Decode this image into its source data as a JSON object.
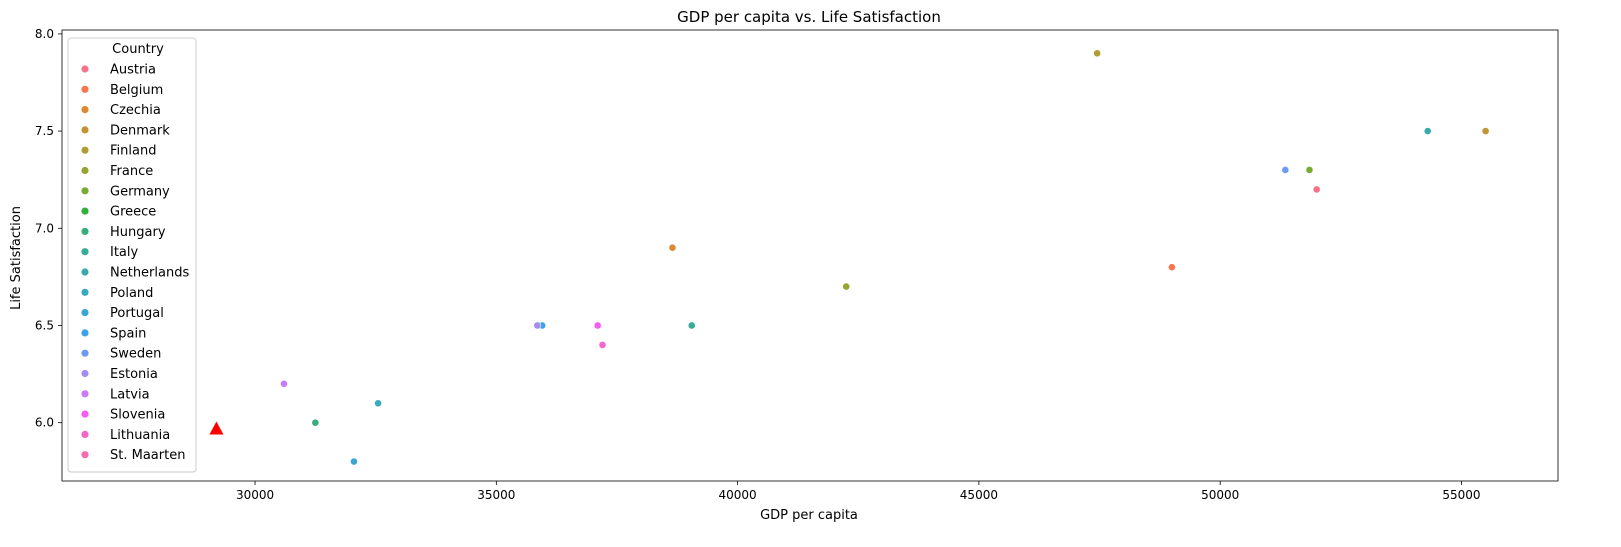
{
  "chart_data": {
    "type": "scatter",
    "title": "GDP per capita vs. Life Satisfaction",
    "xlabel": "GDP per capita",
    "ylabel": "Life Satisfaction",
    "xlim": [
      26000,
      57000
    ],
    "ylim": [
      5.7,
      8.02
    ],
    "xticks": [
      30000,
      35000,
      40000,
      45000,
      50000,
      55000
    ],
    "yticks": [
      6.0,
      6.5,
      7.0,
      7.5,
      8.0
    ],
    "xtick_labels": [
      "30000",
      "35000",
      "40000",
      "45000",
      "50000",
      "55000"
    ],
    "ytick_labels": [
      "6.0",
      "6.5",
      "7.0",
      "7.5",
      "8.0"
    ],
    "grid": false,
    "legend": {
      "title": "Country",
      "placement": "upper-left"
    },
    "series": [
      {
        "name": "Austria",
        "color": "#f77189",
        "x": [
          52000
        ],
        "y": [
          7.2
        ]
      },
      {
        "name": "Belgium",
        "color": "#f7754f",
        "x": [
          49000
        ],
        "y": [
          6.8
        ]
      },
      {
        "name": "Czechia",
        "color": "#dc8932",
        "x": [
          38650
        ],
        "y": [
          6.9
        ]
      },
      {
        "name": "Denmark",
        "color": "#c39532",
        "x": [
          55500
        ],
        "y": [
          7.5
        ]
      },
      {
        "name": "Finland",
        "color": "#ae9d31",
        "x": [
          47450
        ],
        "y": [
          7.9
        ]
      },
      {
        "name": "France",
        "color": "#97a431",
        "x": [
          42250
        ],
        "y": [
          6.7
        ]
      },
      {
        "name": "Germany",
        "color": "#77ab31",
        "x": [
          51850
        ],
        "y": [
          7.3
        ]
      },
      {
        "name": "Greece",
        "color": "#33b039",
        "x": [],
        "y": []
      },
      {
        "name": "Hungary",
        "color": "#35ae7c",
        "x": [
          31250
        ],
        "y": [
          6.0
        ]
      },
      {
        "name": "Italy",
        "color": "#36ad94",
        "x": [
          39050
        ],
        "y": [
          6.5
        ]
      },
      {
        "name": "Netherlands",
        "color": "#37abaa",
        "x": [
          54300
        ],
        "y": [
          7.5
        ]
      },
      {
        "name": "Poland",
        "color": "#38a9bf",
        "x": [
          32550
        ],
        "y": [
          6.1
        ]
      },
      {
        "name": "Portugal",
        "color": "#3aa6d4",
        "x": [
          32050
        ],
        "y": [
          5.8
        ]
      },
      {
        "name": "Spain",
        "color": "#3ba3ec",
        "x": [
          35950
        ],
        "y": [
          6.5
        ]
      },
      {
        "name": "Sweden",
        "color": "#6e9af4",
        "x": [
          51350
        ],
        "y": [
          7.3
        ]
      },
      {
        "name": "Estonia",
        "color": "#a48cf4",
        "x": [
          35850
        ],
        "y": [
          6.5
        ]
      },
      {
        "name": "Latvia",
        "color": "#cc7af4",
        "x": [
          30600
        ],
        "y": [
          6.2
        ]
      },
      {
        "name": "Slovenia",
        "color": "#f45cf2",
        "x": [
          37100
        ],
        "y": [
          6.5
        ]
      },
      {
        "name": "Lithuania",
        "color": "#f565cc",
        "x": [
          37200
        ],
        "y": [
          6.4
        ]
      },
      {
        "name": "St. Maarten",
        "color": "#f66bad",
        "x": [],
        "y": []
      }
    ],
    "highlight": {
      "marker": "triangle",
      "color": "#ff0000",
      "x": 29200,
      "y": 5.97
    }
  }
}
